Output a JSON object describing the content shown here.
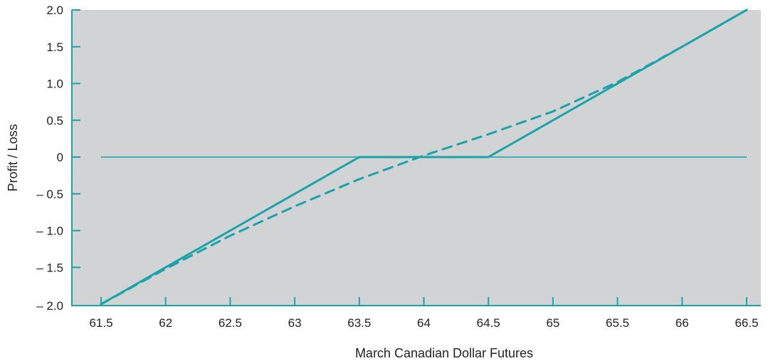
{
  "chart_data": {
    "type": "line",
    "title": "",
    "xlabel": "March Canadian Dollar Futures",
    "ylabel": "Profit / Loss",
    "xlim": [
      61.5,
      66.5
    ],
    "ylim": [
      -2.0,
      2.0
    ],
    "x_ticks": [
      61.5,
      62,
      62.5,
      63,
      63.5,
      64,
      64.5,
      65,
      65.5,
      66,
      66.5
    ],
    "x_tick_labels": [
      "61.5",
      "62",
      "62.5",
      "63",
      "63.5",
      "64",
      "64.5",
      "65",
      "65.5",
      "66",
      "66.5"
    ],
    "y_ticks": [
      2.0,
      1.5,
      1.0,
      0.5,
      0,
      -0.5,
      -1.0,
      -1.5,
      -2.0
    ],
    "y_tick_labels": [
      "2.0",
      "1.5",
      "1.0",
      "0.5",
      "0",
      "– 0.5",
      "– 1.0",
      "– 1.5",
      "– 2.0"
    ],
    "grid": false,
    "zero_line": true,
    "colors": {
      "line": "#1aa3ab",
      "plot_background": "#d2d3d5",
      "axis": "#1aa3ab"
    },
    "series": [
      {
        "style": "solid",
        "x": [
          61.5,
          63.5,
          64.5,
          66.5
        ],
        "y": [
          -2.0,
          0,
          0,
          2.0
        ]
      },
      {
        "style": "dashed",
        "x": [
          61.5,
          62.0,
          62.5,
          63.0,
          63.5,
          64.0,
          64.5,
          65.0,
          65.5,
          66.0,
          66.5
        ],
        "y": [
          -2.0,
          -1.52,
          -1.07,
          -0.67,
          -0.3,
          0.02,
          0.31,
          0.62,
          1.02,
          1.5,
          2.0
        ]
      }
    ]
  }
}
